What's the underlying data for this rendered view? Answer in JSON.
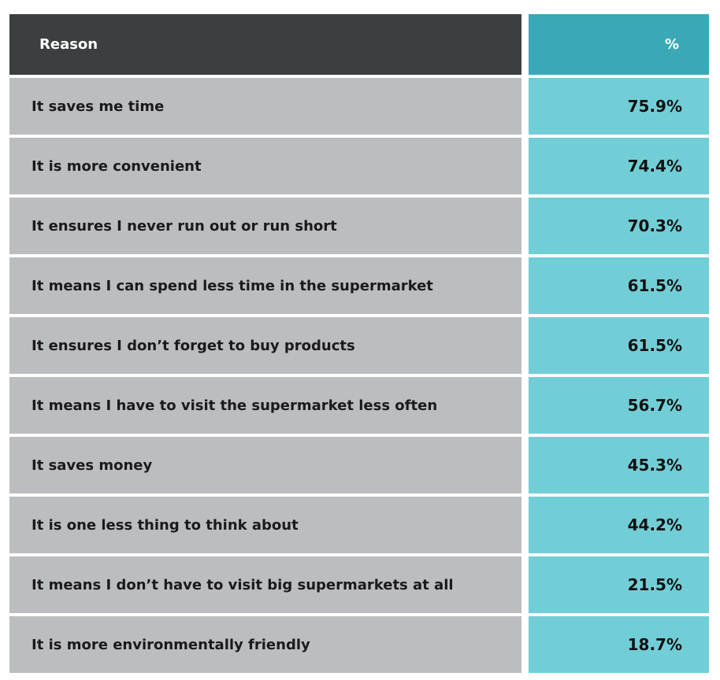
{
  "chart_data": {
    "type": "table",
    "columns": [
      "Reason",
      "%"
    ],
    "rows": [
      {
        "reason": "It saves me time",
        "value": "75.9%"
      },
      {
        "reason": "It is more convenient",
        "value": "74.4%"
      },
      {
        "reason": "It ensures I never run out or run short",
        "value": "70.3%"
      },
      {
        "reason": "It means I can spend less time in the supermarket",
        "value": "61.5%"
      },
      {
        "reason": "It ensures I don’t forget to buy products",
        "value": "61.5%"
      },
      {
        "reason": "It means I have to visit the supermarket less often",
        "value": "56.7%"
      },
      {
        "reason": "It saves money",
        "value": "45.3%"
      },
      {
        "reason": "It is one less thing to think about",
        "value": "44.2%"
      },
      {
        "reason": "It means I don’t have to visit big supermarkets at all",
        "value": "21.5%"
      },
      {
        "reason": "It is more environmentally friendly",
        "value": "18.7%"
      }
    ]
  },
  "colors": {
    "header_reason_bg": "#3b3f3f",
    "header_pct_bg": "#3aa8b7",
    "reason_bg": "#bcbdc0",
    "pct_bg": "#72ced6"
  }
}
